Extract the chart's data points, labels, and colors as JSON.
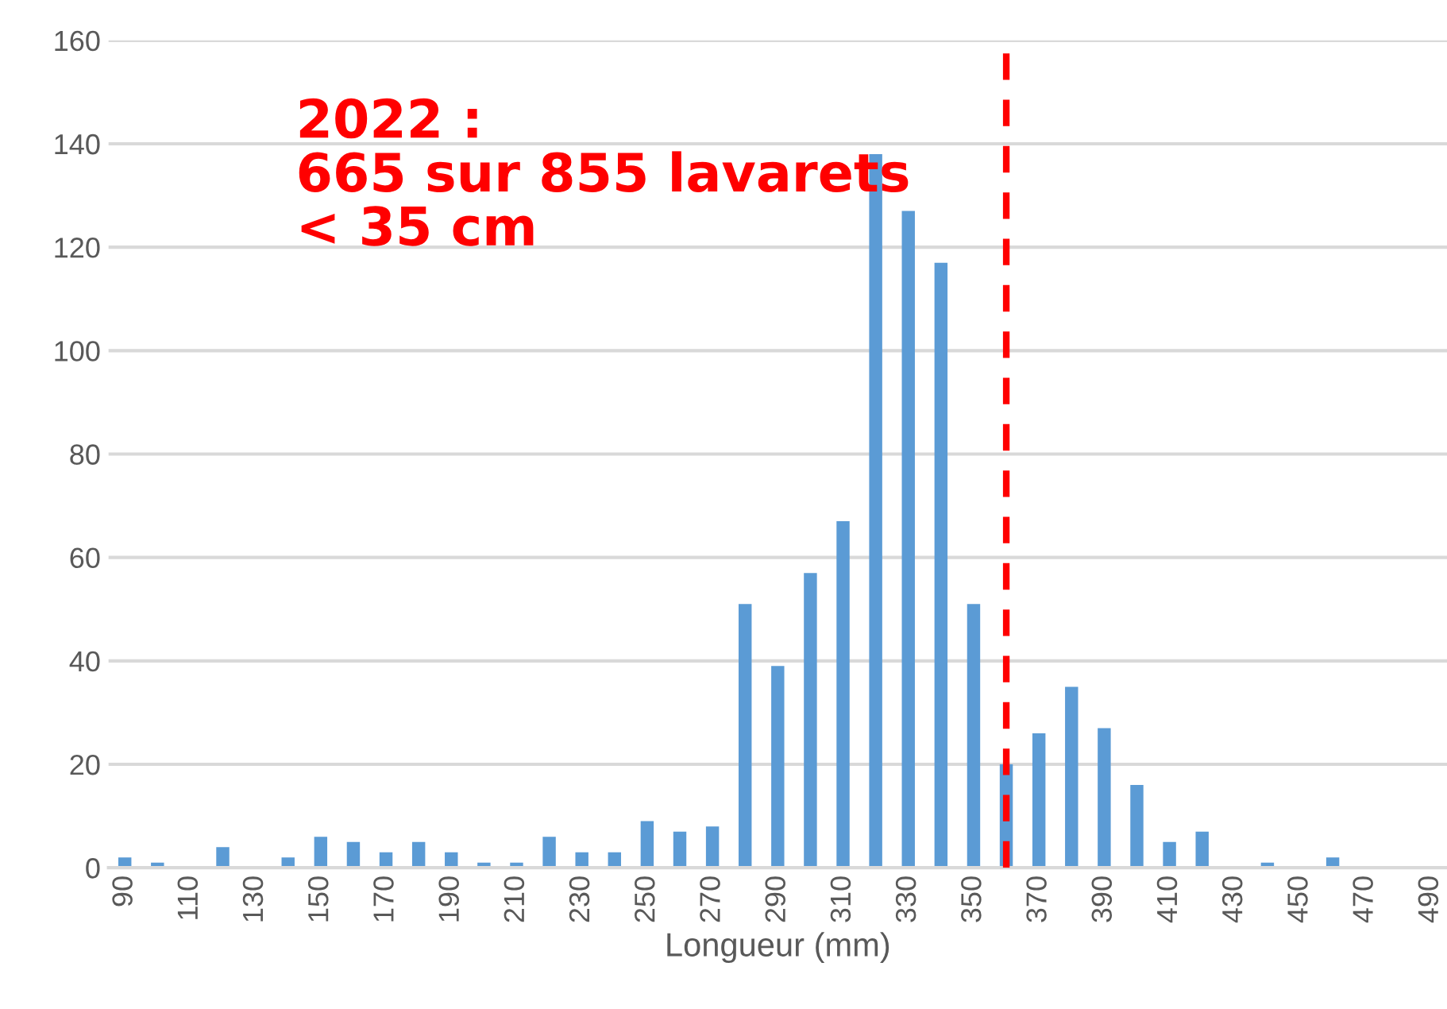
{
  "chart_data": {
    "type": "bar",
    "xlabel": "Longueur (mm)",
    "x": [
      90,
      100,
      110,
      120,
      130,
      140,
      150,
      160,
      170,
      180,
      190,
      200,
      210,
      220,
      230,
      240,
      250,
      260,
      270,
      280,
      290,
      300,
      310,
      320,
      330,
      340,
      350,
      360,
      370,
      380,
      390,
      400,
      410,
      420,
      430,
      440,
      450,
      460,
      470,
      480,
      490
    ],
    "values": [
      2,
      1,
      0,
      4,
      0,
      2,
      6,
      5,
      3,
      5,
      3,
      1,
      1,
      6,
      3,
      3,
      9,
      7,
      8,
      51,
      39,
      57,
      67,
      138,
      127,
      117,
      51,
      20,
      26,
      35,
      27,
      16,
      5,
      7,
      0,
      1,
      0,
      2,
      0,
      0,
      0
    ],
    "color": "#5b9bd5",
    "xlim": [
      85,
      495
    ],
    "xticks": [
      90,
      110,
      130,
      150,
      170,
      190,
      210,
      230,
      250,
      270,
      290,
      310,
      330,
      350,
      370,
      390,
      410,
      430,
      450,
      470,
      490
    ],
    "ylim": [
      0,
      160
    ],
    "yticks": [
      0,
      20,
      40,
      60,
      80,
      100,
      120,
      140,
      160
    ],
    "grid": "y",
    "ref_lines": [
      {
        "axis": "x",
        "value": 360,
        "color": "#ff0000",
        "line_style": "dashed"
      }
    ],
    "annotations": [
      "2022 :",
      "665 sur 855 lavarets",
      "< 35 cm"
    ]
  }
}
